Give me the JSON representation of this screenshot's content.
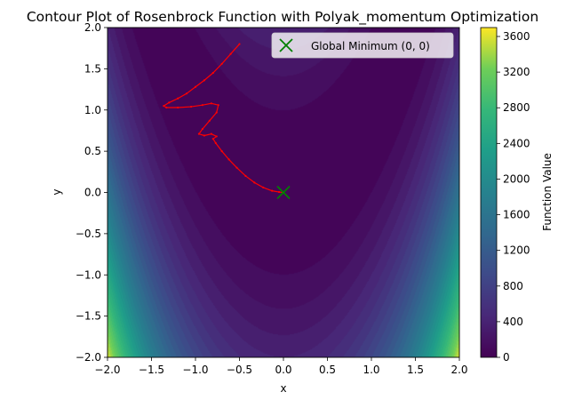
{
  "chart_data": {
    "type": "contour",
    "title": "Contour Plot of Rosenbrock Function with Polyak_momentum Optimization",
    "xlabel": "x",
    "ylabel": "y",
    "xlim": [
      -2.0,
      2.0
    ],
    "ylim": [
      -2.0,
      2.0
    ],
    "xticks": [
      "−2.0",
      "−1.5",
      "−1.0",
      "−0.5",
      "0.0",
      "0.5",
      "1.0",
      "1.5",
      "2.0"
    ],
    "yticks": [
      "−2.0",
      "−1.5",
      "−1.0",
      "−0.5",
      "0.0",
      "0.5",
      "1.0",
      "1.5",
      "2.0"
    ],
    "xtick_values": [
      -2.0,
      -1.5,
      -1.0,
      -0.5,
      0.0,
      0.5,
      1.0,
      1.5,
      2.0
    ],
    "ytick_values": [
      -2.0,
      -1.5,
      -1.0,
      -0.5,
      0.0,
      0.5,
      1.0,
      1.5,
      2.0
    ],
    "function": "rosenbrock",
    "colormap": "viridis",
    "zlim": [
      0,
      3700
    ],
    "colorbar": {
      "label": "Function Value",
      "ticks": [
        0,
        400,
        800,
        1200,
        1600,
        2000,
        2400,
        2800,
        3200,
        3600
      ],
      "tick_labels": [
        "0",
        "400",
        "800",
        "1200",
        "1600",
        "2000",
        "2400",
        "2800",
        "3200",
        "3600"
      ]
    },
    "global_minimum": {
      "x": 0.0,
      "y": 0.0,
      "marker": "x",
      "color": "#008000"
    },
    "legend": {
      "position": "top-right",
      "entries": [
        "Global Minimum (0, 0)"
      ]
    },
    "path": {
      "color": "#ff0000",
      "points": [
        [
          -0.5,
          1.8
        ],
        [
          -0.6,
          1.68
        ],
        [
          -0.7,
          1.56
        ],
        [
          -0.8,
          1.45
        ],
        [
          -0.9,
          1.36
        ],
        [
          -1.0,
          1.28
        ],
        [
          -1.1,
          1.2
        ],
        [
          -1.2,
          1.14
        ],
        [
          -1.3,
          1.09
        ],
        [
          -1.36,
          1.05
        ],
        [
          -1.33,
          1.03
        ],
        [
          -1.2,
          1.03
        ],
        [
          -1.05,
          1.04
        ],
        [
          -0.92,
          1.06
        ],
        [
          -0.82,
          1.08
        ],
        [
          -0.74,
          1.06
        ],
        [
          -0.76,
          0.97
        ],
        [
          -0.84,
          0.87
        ],
        [
          -0.92,
          0.77
        ],
        [
          -0.96,
          0.71
        ],
        [
          -0.9,
          0.69
        ],
        [
          -0.82,
          0.71
        ],
        [
          -0.76,
          0.68
        ],
        [
          -0.8,
          0.65
        ],
        [
          -0.77,
          0.6
        ],
        [
          -0.7,
          0.5
        ],
        [
          -0.62,
          0.4
        ],
        [
          -0.53,
          0.3
        ],
        [
          -0.43,
          0.2
        ],
        [
          -0.33,
          0.12
        ],
        [
          -0.23,
          0.06
        ],
        [
          -0.13,
          0.02
        ],
        [
          -0.05,
          0.005
        ],
        [
          0.0,
          0.0
        ]
      ]
    }
  }
}
